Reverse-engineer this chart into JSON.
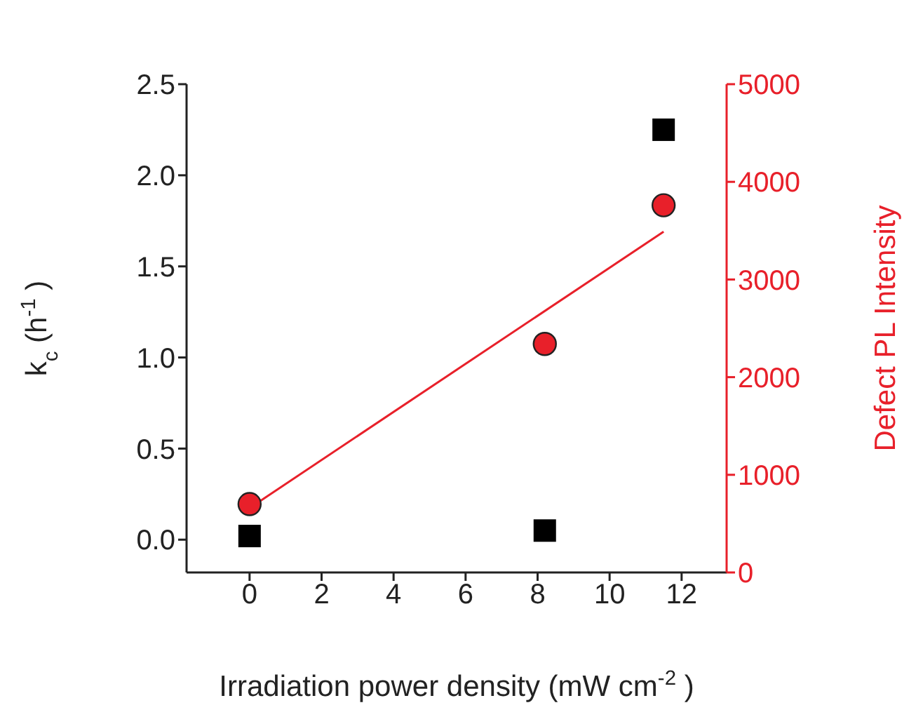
{
  "chart_data": {
    "type": "scatter",
    "xlabel": "Irradiation power density (mW cm$^{-2}$)",
    "ylabel": "k$_{c}$ (h$^{-1}$)",
    "y2label": "Defect PL Intensity",
    "xlim": [
      -1.75,
      13.25
    ],
    "xticks": [
      0,
      2,
      4,
      6,
      8,
      10,
      12
    ],
    "ylim": [
      -0.18,
      2.5
    ],
    "yticks": [
      {
        "value": 0,
        "label": "0.0"
      },
      {
        "value": 0.5,
        "label": "0.5"
      },
      {
        "value": 1,
        "label": "1.0"
      },
      {
        "value": 1.5,
        "label": "1.5"
      },
      {
        "value": 2,
        "label": "2.0"
      },
      {
        "value": 2.5,
        "label": "2.5"
      }
    ],
    "y2lim": [
      0,
      5000
    ],
    "y2ticks": [
      0,
      1000,
      2000,
      3000,
      4000,
      5000
    ],
    "series": [
      {
        "marker": "square",
        "color": "#000000",
        "x": [
          0,
          8.2,
          11.5
        ],
        "values": [
          0.02,
          0.05,
          2.25
        ]
      },
      {
        "marker": "circle",
        "color": "#e8202a",
        "axis": "y2",
        "x": [
          0,
          8.2,
          11.5
        ],
        "values": [
          700,
          2340,
          3760
        ]
      },
      {
        "type": "line",
        "marker": "none",
        "color": "#e8202a",
        "axis": "y2",
        "x": [
          0,
          11.5
        ],
        "values": [
          660,
          3490
        ]
      }
    ]
  }
}
